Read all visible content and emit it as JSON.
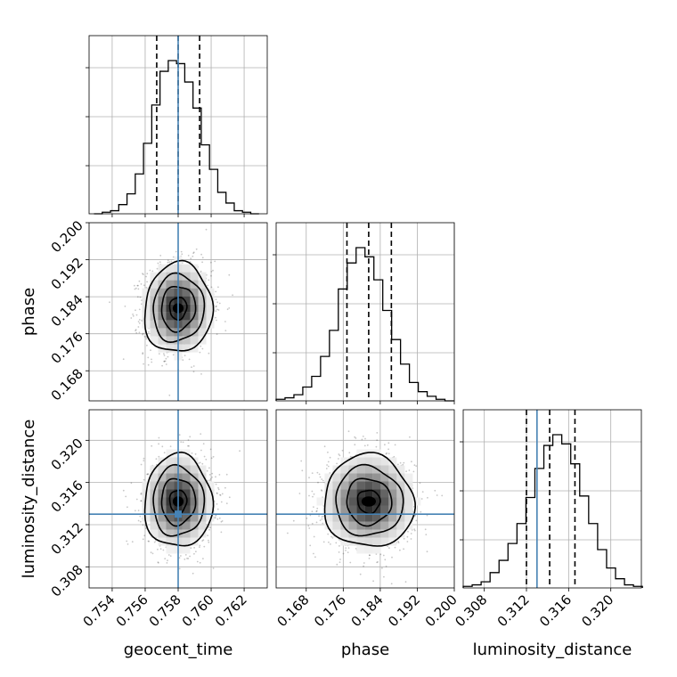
{
  "chart_data": {
    "type": "corner",
    "parameters": [
      "geocent_time",
      "phase",
      "luminosity_distance"
    ],
    "truths": {
      "geocent_time": 0.758,
      "phase": null,
      "luminosity_distance": 0.313
    },
    "axes": {
      "geocent_time": {
        "range": [
          0.7526,
          0.7634
        ],
        "ticks": [
          0.754,
          0.756,
          0.758,
          0.76,
          0.762
        ],
        "tick_labels": [
          "0.754",
          "0.756",
          "0.758",
          "0.760",
          "0.762"
        ]
      },
      "phase": {
        "range": [
          0.1615,
          0.2
        ],
        "ticks": [
          0.168,
          0.176,
          0.184,
          0.192,
          0.2
        ],
        "tick_labels": [
          "0.168",
          "0.176",
          "0.184",
          "0.192",
          "0.200"
        ]
      },
      "luminosity_distance": {
        "range": [
          0.306,
          0.3229
        ],
        "ticks": [
          0.308,
          0.312,
          0.316,
          0.32
        ],
        "tick_labels": [
          "0.308",
          "0.312",
          "0.316",
          "0.320"
        ]
      }
    },
    "histograms": {
      "geocent_time": {
        "bins": [
          0.7529,
          0.7534,
          0.7539,
          0.7544,
          0.7549,
          0.7554,
          0.7559,
          0.7564,
          0.7569,
          0.7574,
          0.7579,
          0.7584,
          0.7589,
          0.7594,
          0.7599,
          0.7604,
          0.7609,
          0.7614,
          0.7619,
          0.7624,
          0.7629
        ],
        "counts": [
          0,
          0.01,
          0.02,
          0.06,
          0.13,
          0.26,
          0.46,
          0.71,
          0.93,
          1.0,
          0.98,
          0.86,
          0.69,
          0.45,
          0.29,
          0.14,
          0.07,
          0.02,
          0.01,
          0
        ],
        "quantiles": [
          0.7567,
          0.758,
          0.7593
        ]
      },
      "phase": {
        "bins": [
          0.1615,
          0.16342,
          0.16534,
          0.16726,
          0.16918,
          0.1711,
          0.17302,
          0.17494,
          0.17686,
          0.17878,
          0.1807,
          0.18262,
          0.18454,
          0.18646,
          0.18838,
          0.1903,
          0.19222,
          0.19414,
          0.19606,
          0.19798,
          0.1999
        ],
        "counts": [
          0.01,
          0.02,
          0.04,
          0.09,
          0.16,
          0.29,
          0.46,
          0.73,
          0.9,
          1.0,
          0.94,
          0.79,
          0.59,
          0.4,
          0.24,
          0.12,
          0.06,
          0.03,
          0.01,
          0
        ],
        "quantiles": [
          0.1768,
          0.1815,
          0.1864
        ]
      },
      "luminosity_distance": {
        "bins": [
          0.306,
          0.30685,
          0.3077,
          0.30855,
          0.3094,
          0.31025,
          0.3111,
          0.31195,
          0.3128,
          0.31365,
          0.3145,
          0.31535,
          0.3162,
          0.31705,
          0.3179,
          0.31875,
          0.3196,
          0.32045,
          0.3213,
          0.32215,
          0.323
        ],
        "counts": [
          0.01,
          0.02,
          0.04,
          0.1,
          0.18,
          0.29,
          0.42,
          0.59,
          0.78,
          0.93,
          1.0,
          0.94,
          0.81,
          0.6,
          0.42,
          0.25,
          0.13,
          0.06,
          0.02,
          0.01
        ],
        "quantiles": [
          0.312,
          0.3142,
          0.3166
        ]
      }
    },
    "joint": [
      {
        "x": "geocent_time",
        "y": "phase",
        "center": [
          0.758,
          0.1815
        ],
        "sigma": [
          0.00103,
          0.00485
        ],
        "rho": 0.05
      },
      {
        "x": "geocent_time",
        "y": "luminosity_distance",
        "center": [
          0.758,
          0.3142
        ],
        "sigma": [
          0.00103,
          0.0022
        ],
        "rho": 0.0
      },
      {
        "x": "phase",
        "y": "luminosity_distance",
        "center": [
          0.1815,
          0.3142
        ],
        "sigma": [
          0.00485,
          0.0022
        ],
        "rho": -0.03
      }
    ],
    "contour_levels_sigma": [
      0.5,
      1.0,
      1.5,
      2.0
    ],
    "title": "",
    "grid": true,
    "legend": null
  }
}
